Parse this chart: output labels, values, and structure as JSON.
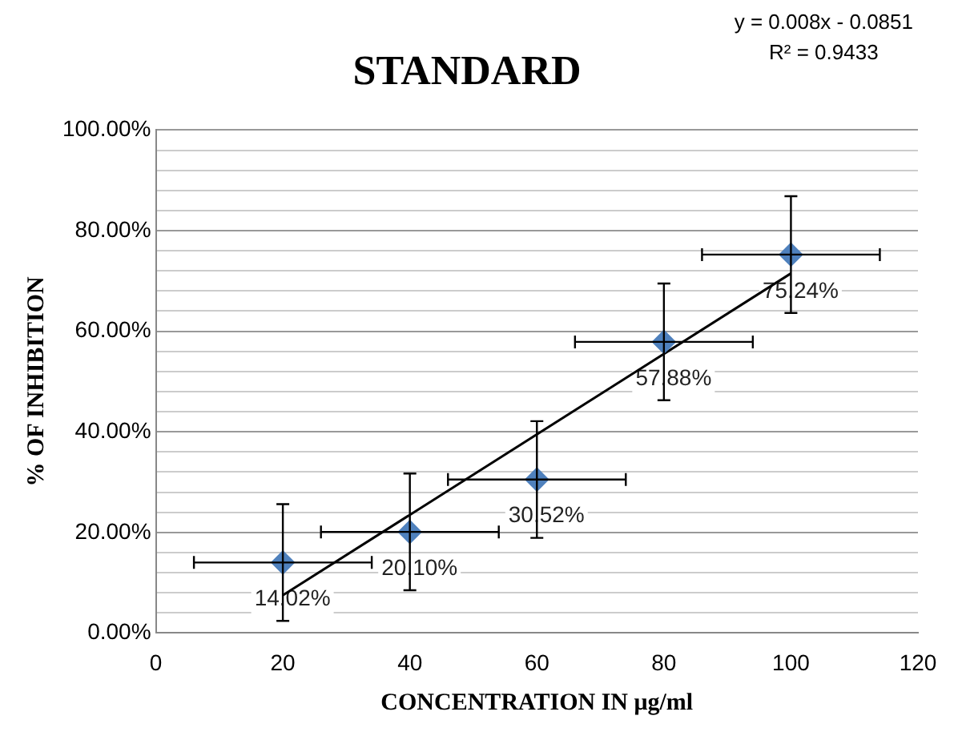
{
  "chart_data": {
    "type": "scatter",
    "title": "STANDARD",
    "xlabel": "CONCENTRATION IN μg/ml",
    "ylabel": "% OF INHIBITION",
    "annotations": [
      "y = 0.008x - 0.0851",
      "R² = 0.9433"
    ],
    "xlim": [
      0,
      120
    ],
    "xticks": [
      0,
      20,
      40,
      60,
      80,
      100,
      120
    ],
    "ylim": [
      0,
      100
    ],
    "yticks": [
      {
        "value": 0,
        "label": "0.00%"
      },
      {
        "value": 4,
        "label": null
      },
      {
        "value": 8,
        "label": null
      },
      {
        "value": 12,
        "label": null
      },
      {
        "value": 16,
        "label": null
      },
      {
        "value": 20,
        "label": "20.00%"
      },
      {
        "value": 24,
        "label": null
      },
      {
        "value": 28,
        "label": null
      },
      {
        "value": 32,
        "label": null
      },
      {
        "value": 36,
        "label": null
      },
      {
        "value": 40,
        "label": "40.00%"
      },
      {
        "value": 44,
        "label": null
      },
      {
        "value": 48,
        "label": null
      },
      {
        "value": 52,
        "label": null
      },
      {
        "value": 56,
        "label": null
      },
      {
        "value": 60,
        "label": "60.00%"
      },
      {
        "value": 64,
        "label": null
      },
      {
        "value": 68,
        "label": null
      },
      {
        "value": 72,
        "label": null
      },
      {
        "value": 76,
        "label": null
      },
      {
        "value": 80,
        "label": "80.00%"
      },
      {
        "value": 84,
        "label": null
      },
      {
        "value": 88,
        "label": null
      },
      {
        "value": 92,
        "label": null
      },
      {
        "value": 96,
        "label": null
      },
      {
        "value": 100,
        "label": "100.00%"
      }
    ],
    "grid": "y",
    "marker": "diamond",
    "series": [
      {
        "type": "scatter",
        "color": "#4f81bd",
        "x": [
          20,
          40,
          60,
          80,
          100
        ],
        "values": [
          14.02,
          20.1,
          30.52,
          57.88,
          75.24
        ],
        "value_labels": [
          "14.02%",
          "20.10%",
          "30.52%",
          "57.88%",
          "75.24%"
        ],
        "errors": [
          11.6,
          11.6,
          11.6,
          11.6,
          11.6
        ],
        "xerrors": [
          14,
          14,
          14,
          14,
          14
        ]
      },
      {
        "type": "line",
        "color": "#000000",
        "x": [
          20,
          100
        ],
        "values": [
          7.5,
          71.5
        ],
        "marker": "none",
        "line_style": "solid"
      }
    ]
  }
}
